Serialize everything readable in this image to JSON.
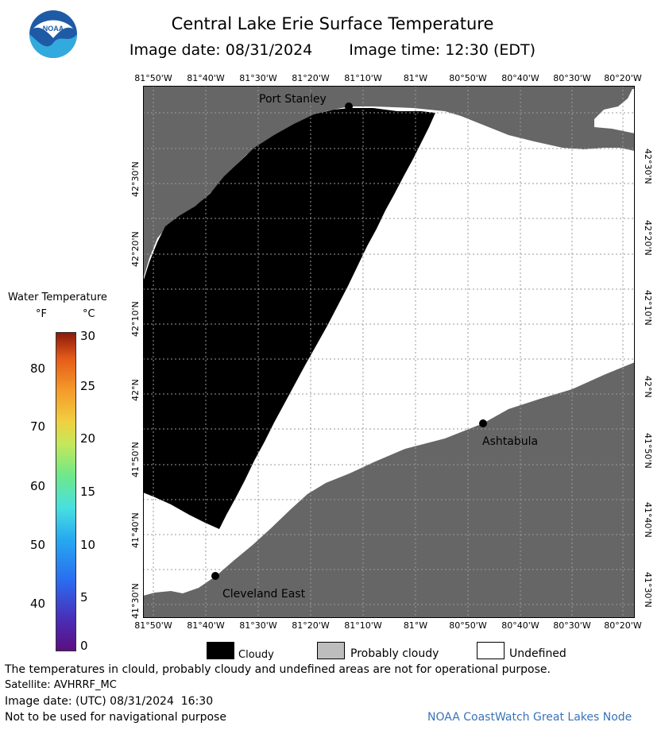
{
  "header": {
    "title": "Central Lake Erie Surface Temperature",
    "image_date_label": "Image date: 08/31/2024",
    "image_time_label": "Image time: 12:30 (EDT)"
  },
  "logo": {
    "text": "NOAA"
  },
  "map": {
    "longitude_labels": [
      "81°50'W",
      "81°40'W",
      "81°30'W",
      "81°20'W",
      "81°10'W",
      "81°W",
      "80°50'W",
      "80°40'W",
      "80°30'W",
      "80°20'W"
    ],
    "latitude_labels": [
      "42°30'N",
      "42°20'N",
      "42°10'N",
      "42°N",
      "41°50'N",
      "41°40'N",
      "41°30'N"
    ],
    "places": {
      "port_stanley": "Port Stanley",
      "ashtabula": "Ashtabula",
      "cleveland_east": "Cleveland East"
    },
    "colors": {
      "land": "#666666",
      "cloud": "#000000",
      "undefined": "#ffffff",
      "grid": "#9a9a9a"
    }
  },
  "colorbar": {
    "title": "Water Temperature",
    "unit_f": "°F",
    "unit_c": "°C",
    "f_ticks": [
      "80",
      "70",
      "60",
      "50",
      "40"
    ],
    "c_ticks": [
      "30",
      "25",
      "20",
      "15",
      "10",
      "5",
      "0"
    ],
    "c_range": [
      0,
      30
    ]
  },
  "legend": {
    "cloudy": "Cloudy",
    "probably_cloudy": "Probably cloudy",
    "undefined": "Undefined",
    "cloudy_color": "#000000",
    "probably_cloudy_color": "#bdbdbd",
    "undefined_color": "#ffffff"
  },
  "footer": {
    "disclaimer": "The temperatures in clould, probably cloudy and undefined areas are not for operational purpose.",
    "satellite": "Satellite: AVHRRF_MC",
    "image_date_utc": "Image date: (UTC) 08/31/2024  16:30",
    "navigation_warning": "Not to be used for navigational purpose",
    "credit": "NOAA CoastWatch Great Lakes Node"
  }
}
